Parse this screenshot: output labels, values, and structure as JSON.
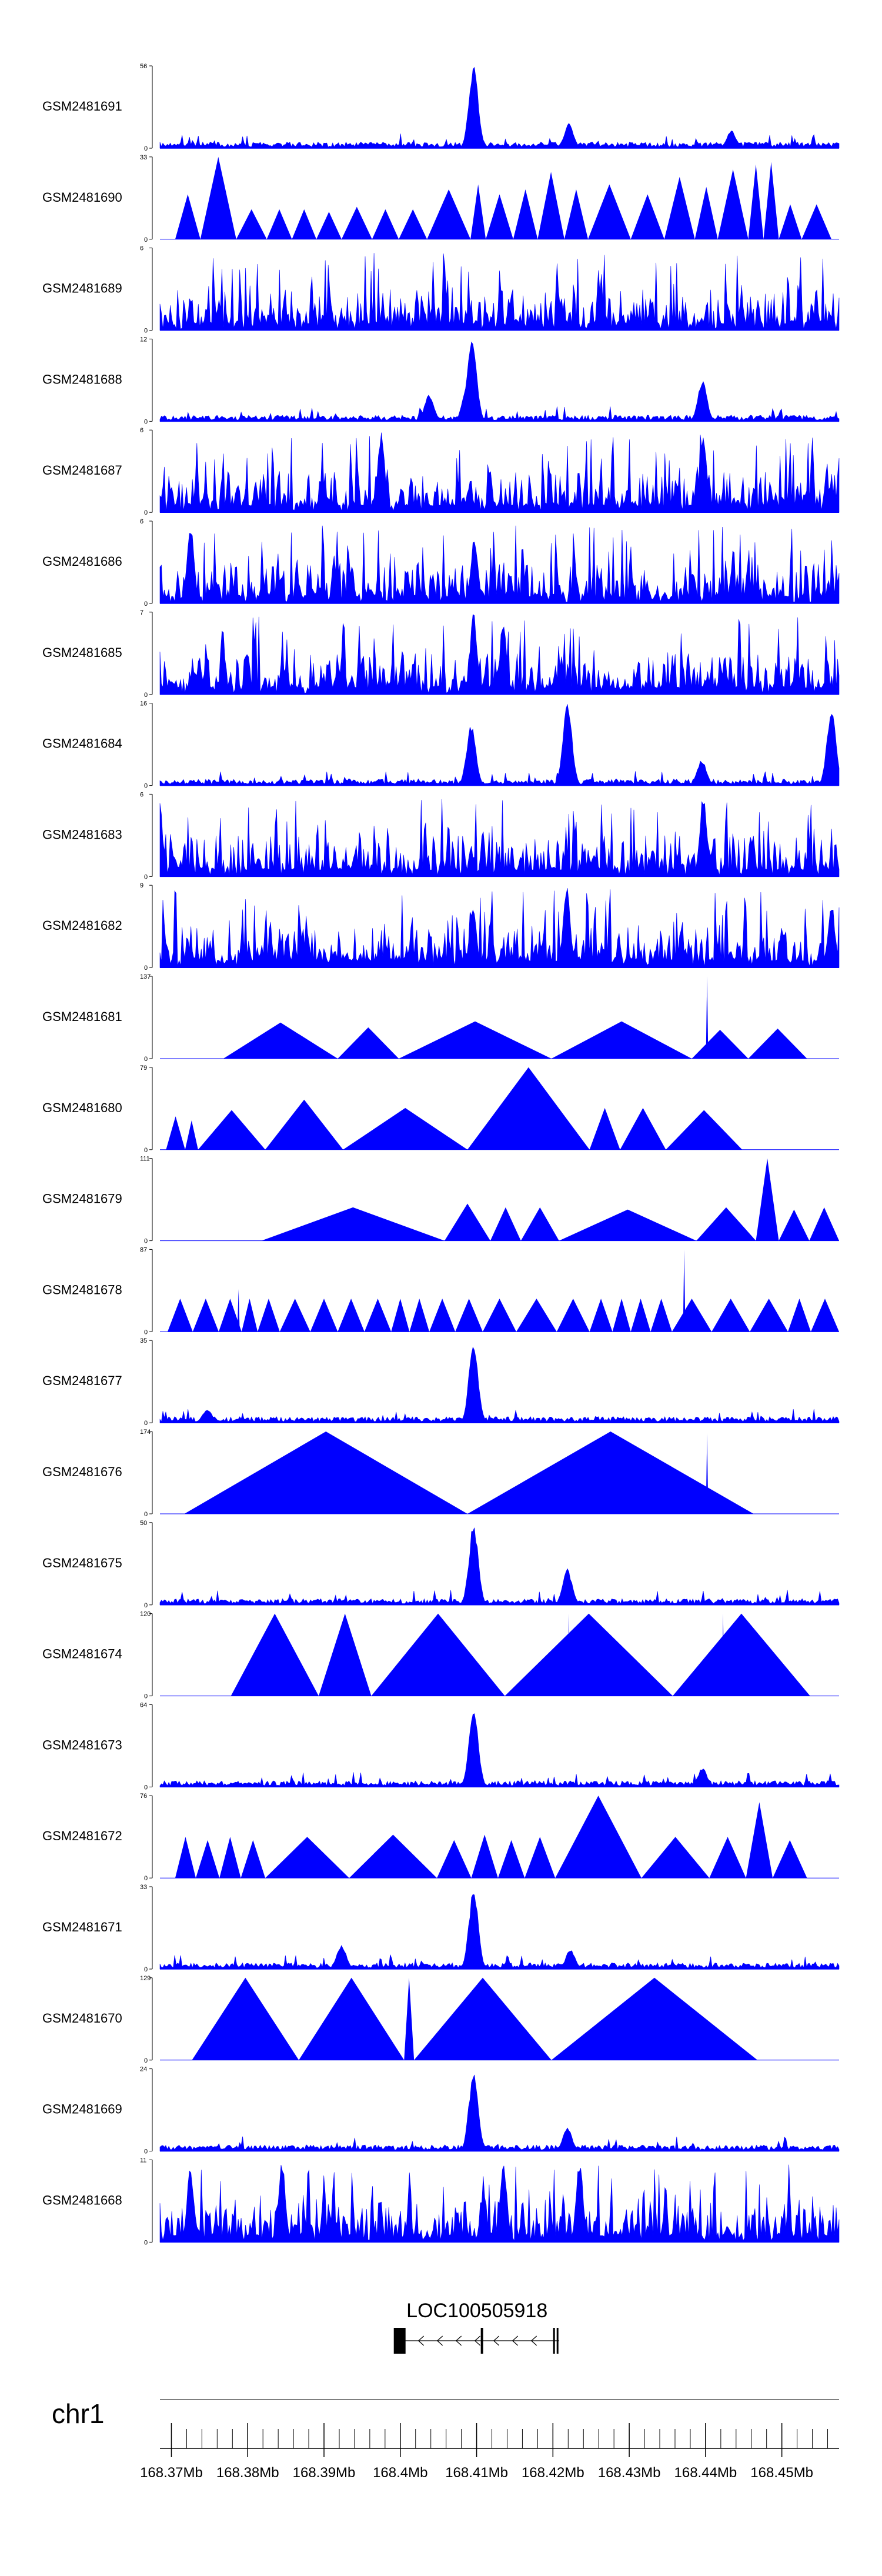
{
  "chart_data": {
    "type": "area",
    "region": {
      "chrom": "chr1",
      "start_mb": 168.3685,
      "end_mb": 168.4575
    },
    "series": [
      {
        "name": "GSM2481691",
        "ymax": 56,
        "profile": "peaky",
        "peaks": [
          [
            168.4096,
            56
          ],
          [
            168.4221,
            17
          ],
          [
            168.4434,
            12
          ]
        ]
      },
      {
        "name": "GSM2481690",
        "ymax": 33,
        "profile": "triangles",
        "spans": [
          [
            168.3705,
            168.3738,
            18
          ],
          [
            168.3738,
            168.3785,
            33
          ],
          [
            168.3785,
            168.3825,
            12
          ],
          [
            168.3825,
            168.3858,
            12
          ],
          [
            168.3858,
            168.389,
            12
          ],
          [
            168.389,
            168.3923,
            11
          ],
          [
            168.3923,
            168.3963,
            13
          ],
          [
            168.3963,
            168.3998,
            12
          ],
          [
            168.3998,
            168.4035,
            12
          ],
          [
            168.4035,
            168.4092,
            20
          ],
          [
            168.4092,
            168.4112,
            22
          ],
          [
            168.4112,
            168.4148,
            18
          ],
          [
            168.4148,
            168.418,
            20
          ],
          [
            168.418,
            168.4215,
            27
          ],
          [
            168.4215,
            168.4246,
            20
          ],
          [
            168.4246,
            168.4302,
            22
          ],
          [
            168.4302,
            168.4346,
            18
          ],
          [
            168.4346,
            168.4386,
            25
          ],
          [
            168.4386,
            168.4416,
            21
          ],
          [
            168.4416,
            168.4456,
            28
          ],
          [
            168.4456,
            168.4476,
            30
          ],
          [
            168.4476,
            168.4496,
            31
          ],
          [
            168.4496,
            168.4526,
            14
          ],
          [
            168.4526,
            168.4565,
            14
          ]
        ]
      },
      {
        "name": "GSM2481689",
        "ymax": 6,
        "profile": "spiky",
        "peaks": []
      },
      {
        "name": "GSM2481688",
        "ymax": 12,
        "profile": "peaky",
        "peaks": [
          [
            168.4094,
            12
          ],
          [
            168.4088,
            6
          ],
          [
            168.4396,
            6
          ],
          [
            168.4038,
            4
          ]
        ]
      },
      {
        "name": "GSM2481687",
        "ymax": 6,
        "profile": "spiky",
        "peaks": [
          [
            168.4397,
            6
          ],
          [
            168.3975,
            6
          ]
        ]
      },
      {
        "name": "GSM2481686",
        "ymax": 6,
        "profile": "spiky",
        "peaks": [
          [
            168.3725,
            6
          ],
          [
            168.4097,
            5
          ]
        ]
      },
      {
        "name": "GSM2481685",
        "ymax": 7,
        "profile": "spiky",
        "peaks": [
          [
            168.4096,
            7
          ],
          [
            168.4135,
            6
          ]
        ]
      },
      {
        "name": "GSM2481684",
        "ymax": 16,
        "profile": "peaky",
        "peaks": [
          [
            168.4093,
            12
          ],
          [
            168.4219,
            16
          ],
          [
            168.4565,
            15
          ],
          [
            168.4395,
            5
          ]
        ]
      },
      {
        "name": "GSM2481683",
        "ymax": 6,
        "profile": "spiky",
        "peaks": [
          [
            168.4397,
            6
          ]
        ]
      },
      {
        "name": "GSM2481682",
        "ymax": 9,
        "profile": "spiky",
        "peaks": [
          [
            168.4218,
            9
          ],
          [
            168.4565,
            7
          ],
          [
            168.4095,
            7
          ]
        ]
      },
      {
        "name": "GSM2481681",
        "ymax": 137,
        "profile": "triangles",
        "spans": [
          [
            168.3768,
            168.3918,
            60
          ],
          [
            168.3918,
            168.3998,
            52
          ],
          [
            168.3998,
            168.4198,
            62
          ],
          [
            168.4198,
            168.4382,
            62
          ],
          [
            168.4382,
            168.4456,
            48
          ],
          [
            168.4456,
            168.4533,
            50
          ]
        ],
        "spikes": [
          [
            168.4402,
            137
          ]
        ]
      },
      {
        "name": "GSM2481680",
        "ymax": 79,
        "profile": "triangles",
        "spans": [
          [
            168.3693,
            168.3718,
            32
          ],
          [
            168.3718,
            168.3735,
            28
          ],
          [
            168.3735,
            168.3823,
            38
          ],
          [
            168.3823,
            168.3925,
            48
          ],
          [
            168.3925,
            168.4088,
            40
          ],
          [
            168.4088,
            168.4248,
            79
          ],
          [
            168.4248,
            168.4288,
            40
          ],
          [
            168.4288,
            168.4348,
            40
          ],
          [
            168.4348,
            168.4448,
            38
          ]
        ]
      },
      {
        "name": "GSM2481679",
        "ymax": 111,
        "profile": "triangles",
        "spans": [
          [
            168.3818,
            168.4058,
            45
          ],
          [
            168.4058,
            168.4118,
            50
          ],
          [
            168.4118,
            168.4158,
            45
          ],
          [
            168.4158,
            168.4208,
            45
          ],
          [
            168.4208,
            168.4388,
            42
          ],
          [
            168.4388,
            168.4466,
            45
          ],
          [
            168.4466,
            168.4496,
            111
          ],
          [
            168.4496,
            168.4536,
            42
          ],
          [
            168.4536,
            168.4575,
            45
          ]
        ]
      },
      {
        "name": "GSM2481678",
        "ymax": 87,
        "profile": "triangles",
        "spans": [
          [
            168.3695,
            168.3728,
            35
          ],
          [
            168.3728,
            168.3762,
            35
          ],
          [
            168.3762,
            168.3792,
            35
          ],
          [
            168.3792,
            168.3813,
            35
          ],
          [
            168.3813,
            168.3842,
            35
          ],
          [
            168.3842,
            168.3882,
            35
          ],
          [
            168.3882,
            168.3918,
            35
          ],
          [
            168.3918,
            168.3953,
            35
          ],
          [
            168.3953,
            168.3988,
            35
          ],
          [
            168.3988,
            168.4012,
            35
          ],
          [
            168.4012,
            168.4038,
            35
          ],
          [
            168.4038,
            168.4072,
            35
          ],
          [
            168.4072,
            168.4108,
            35
          ],
          [
            168.4108,
            168.4152,
            35
          ],
          [
            168.4152,
            168.4205,
            35
          ],
          [
            168.4205,
            168.4248,
            35
          ],
          [
            168.4248,
            168.4278,
            35
          ],
          [
            168.4278,
            168.4302,
            35
          ],
          [
            168.4302,
            168.4328,
            35
          ],
          [
            168.4328,
            168.4356,
            35
          ],
          [
            168.4356,
            168.4408,
            35
          ],
          [
            168.4408,
            168.4458,
            35
          ],
          [
            168.4458,
            168.4508,
            35
          ],
          [
            168.4508,
            168.4538,
            35
          ],
          [
            168.4538,
            168.4575,
            35
          ]
        ],
        "spikes": [
          [
            168.3788,
            45
          ],
          [
            168.4372,
            87
          ]
        ]
      },
      {
        "name": "GSM2481677",
        "ymax": 35,
        "profile": "peaky",
        "peaks": [
          [
            168.4096,
            35
          ],
          [
            168.3747,
            6
          ]
        ]
      },
      {
        "name": "GSM2481676",
        "ymax": 174,
        "profile": "triangles",
        "spans": [
          [
            168.3717,
            168.4088,
            174
          ],
          [
            168.4088,
            168.4463,
            174
          ]
        ],
        "spikes": [
          [
            168.4402,
            170
          ]
        ]
      },
      {
        "name": "GSM2481675",
        "ymax": 50,
        "profile": "peaky",
        "peaks": [
          [
            168.4096,
            50
          ],
          [
            168.4219,
            22
          ]
        ]
      },
      {
        "name": "GSM2481674",
        "ymax": 120,
        "profile": "triangles",
        "spans": [
          [
            168.3778,
            168.3893,
            120
          ],
          [
            168.3893,
            168.3962,
            120
          ],
          [
            168.3962,
            168.4137,
            120
          ],
          [
            168.4137,
            168.4357,
            120
          ],
          [
            168.4357,
            168.4537,
            120
          ]
        ],
        "spikes": [
          [
            168.4221,
            120
          ],
          [
            168.4423,
            120
          ]
        ]
      },
      {
        "name": "GSM2481673",
        "ymax": 64,
        "profile": "peaky",
        "peaks": [
          [
            168.4096,
            64
          ],
          [
            168.4396,
            15
          ]
        ]
      },
      {
        "name": "GSM2481672",
        "ymax": 76,
        "profile": "triangles",
        "spans": [
          [
            168.3705,
            168.3732,
            38
          ],
          [
            168.3732,
            168.3763,
            35
          ],
          [
            168.3763,
            168.3791,
            38
          ],
          [
            168.3791,
            168.3823,
            35
          ],
          [
            168.3823,
            168.3933,
            38
          ],
          [
            168.3933,
            168.4048,
            40
          ],
          [
            168.4048,
            168.4093,
            35
          ],
          [
            168.4093,
            168.4128,
            40
          ],
          [
            168.4128,
            168.4163,
            35
          ],
          [
            168.4163,
            168.4203,
            38
          ],
          [
            168.4203,
            168.4316,
            76
          ],
          [
            168.4316,
            168.4405,
            38
          ],
          [
            168.4405,
            168.4453,
            38
          ],
          [
            168.4453,
            168.4488,
            70
          ],
          [
            168.4488,
            168.4533,
            35
          ]
        ]
      },
      {
        "name": "GSM2481671",
        "ymax": 33,
        "profile": "peaky",
        "peaks": [
          [
            168.4096,
            33
          ],
          [
            168.3923,
            10
          ],
          [
            168.4223,
            8
          ]
        ]
      },
      {
        "name": "GSM2481670",
        "ymax": 129,
        "profile": "triangles",
        "spans": [
          [
            168.3727,
            168.3867,
            129
          ],
          [
            168.3867,
            168.4005,
            129
          ],
          [
            168.4005,
            168.4018,
            129
          ],
          [
            168.4018,
            168.4198,
            129
          ],
          [
            168.4198,
            168.4468,
            129
          ]
        ]
      },
      {
        "name": "GSM2481669",
        "ymax": 24,
        "profile": "peaky",
        "peaks": [
          [
            168.4096,
            24
          ],
          [
            168.4219,
            7
          ]
        ]
      },
      {
        "name": "GSM2481668",
        "ymax": 11,
        "profile": "spiky",
        "peaks": [
          [
            168.3845,
            11
          ],
          [
            168.4135,
            11
          ],
          [
            168.4235,
            11
          ],
          [
            168.3725,
            10
          ]
        ]
      }
    ],
    "gene": {
      "label": "LOC100505918",
      "start_mb": 168.3993,
      "end_mb": 168.4208,
      "strand": "-"
    },
    "x_axis": {
      "chrom_label": "chr1",
      "ticks": [
        168.37,
        168.38,
        168.39,
        168.4,
        168.41,
        168.42,
        168.43,
        168.44,
        168.45
      ],
      "tick_labels": [
        "168.37Mb",
        "168.38Mb",
        "168.39Mb",
        "168.4Mb",
        "168.41Mb",
        "168.42Mb",
        "168.43Mb",
        "168.44Mb",
        "168.45Mb"
      ],
      "minor_step_mb": 0.002
    },
    "colors": {
      "fill": "#0000ff",
      "axis": "#000000",
      "chrom_line": "#7f7f7f"
    }
  }
}
